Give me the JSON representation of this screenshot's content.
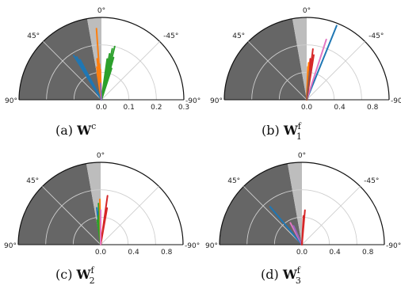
{
  "chart_data": [
    {
      "type": "polar-lines",
      "caption_label": "(a)",
      "caption_symbol": "W",
      "caption_sup": "c",
      "caption_sub": "",
      "angle_ticks": [
        "0°",
        "45°",
        "-45°",
        "90°",
        "-90°"
      ],
      "radial_ticks": [
        "0.0",
        "0.1",
        "0.2",
        "0.3"
      ],
      "rmax": 0.3,
      "shaded_sector_deg": [
        0,
        10
      ],
      "dark_sector_deg": [
        10,
        90
      ],
      "series": [
        {
          "color": "#1f77b4",
          "angles_deg": [
            32,
            30,
            28
          ],
          "lengths": [
            0.19,
            0.18,
            0.165
          ]
        },
        {
          "color": "#ff7f0e",
          "angles_deg": [
            4,
            6,
            8,
            2,
            9,
            5,
            3
          ],
          "lengths": [
            0.26,
            0.15,
            0.12,
            0.11,
            0.1,
            0.09,
            0.13
          ]
        },
        {
          "color": "#2ca02c",
          "angles_deg": [
            -12,
            -14,
            -10,
            -16,
            -8,
            -13,
            -18,
            -11,
            -15
          ],
          "lengths": [
            0.19,
            0.2,
            0.17,
            0.16,
            0.15,
            0.14,
            0.12,
            0.11,
            0.1
          ]
        },
        {
          "color": "#9467bd",
          "angles_deg": [
            3
          ],
          "lengths": [
            0.06
          ]
        }
      ]
    },
    {
      "type": "polar-lines",
      "caption_label": "(b)",
      "caption_symbol": "W",
      "caption_sup": "f",
      "caption_sub": "1",
      "angle_ticks": [
        "0°",
        "45°",
        "-45°",
        "90°",
        "-90°"
      ],
      "radial_ticks": [
        "0.0",
        "0.4",
        "0.8"
      ],
      "rmax": 1.0,
      "shaded_sector_deg": [
        0,
        10
      ],
      "dark_sector_deg": [
        10,
        90
      ],
      "series": [
        {
          "color": "#1f77b4",
          "angles_deg": [
            -22
          ],
          "lengths": [
            0.97
          ]
        },
        {
          "color": "#e377c2",
          "angles_deg": [
            -18
          ],
          "lengths": [
            0.77
          ]
        },
        {
          "color": "#d62728",
          "angles_deg": [
            -7,
            -9,
            -5
          ],
          "lengths": [
            0.62,
            0.55,
            0.5
          ]
        },
        {
          "color": "#ff7f0e",
          "angles_deg": [
            -3,
            -2
          ],
          "lengths": [
            0.45,
            0.4
          ]
        },
        {
          "color": "#8c564b",
          "angles_deg": [
            -6
          ],
          "lengths": [
            0.35
          ]
        }
      ]
    },
    {
      "type": "polar-lines",
      "caption_label": "(c)",
      "caption_symbol": "W",
      "caption_sup": "f",
      "caption_sub": "2",
      "angle_ticks": [
        "0°",
        "45°",
        "90°"
      ],
      "radial_ticks": [
        "0.0",
        "0.4",
        "0.8"
      ],
      "right_tick": "-90°",
      "rmax": 1.0,
      "shaded_sector_deg": [
        0,
        10
      ],
      "dark_sector_deg": [
        10,
        90
      ],
      "series": [
        {
          "color": "#d62728",
          "angles_deg": [
            -8,
            -10
          ],
          "lengths": [
            0.6,
            0.45
          ]
        },
        {
          "color": "#1f77b4",
          "angles_deg": [
            6,
            4
          ],
          "lengths": [
            0.45,
            0.4
          ]
        },
        {
          "color": "#2ca02c",
          "angles_deg": [
            3,
            5,
            8
          ],
          "lengths": [
            0.5,
            0.35,
            0.3
          ]
        },
        {
          "color": "#ff7f0e",
          "angles_deg": [
            1
          ],
          "lengths": [
            0.55
          ]
        },
        {
          "color": "#e377c2",
          "angles_deg": [
            0
          ],
          "lengths": [
            0.42
          ]
        }
      ]
    },
    {
      "type": "polar-lines",
      "caption_label": "(d)",
      "caption_symbol": "W",
      "caption_sup": "f",
      "caption_sub": "3",
      "angle_ticks": [
        "0°",
        "45°",
        "-45°",
        "90°",
        "-90°"
      ],
      "radial_ticks": [
        "0.0",
        "0.4",
        "0.8"
      ],
      "rmax": 1.0,
      "shaded_sector_deg": [
        0,
        10
      ],
      "dark_sector_deg": [
        10,
        90
      ],
      "series": [
        {
          "color": "#1f77b4",
          "angles_deg": [
            40
          ],
          "lengths": [
            0.6
          ]
        },
        {
          "color": "#e377c2",
          "angles_deg": [
            28
          ],
          "lengths": [
            0.3
          ]
        },
        {
          "color": "#9467bd",
          "angles_deg": [
            24
          ],
          "lengths": [
            0.25
          ]
        },
        {
          "color": "#d62728",
          "angles_deg": [
            -5,
            -3
          ],
          "lengths": [
            0.42,
            0.35
          ]
        }
      ]
    }
  ]
}
